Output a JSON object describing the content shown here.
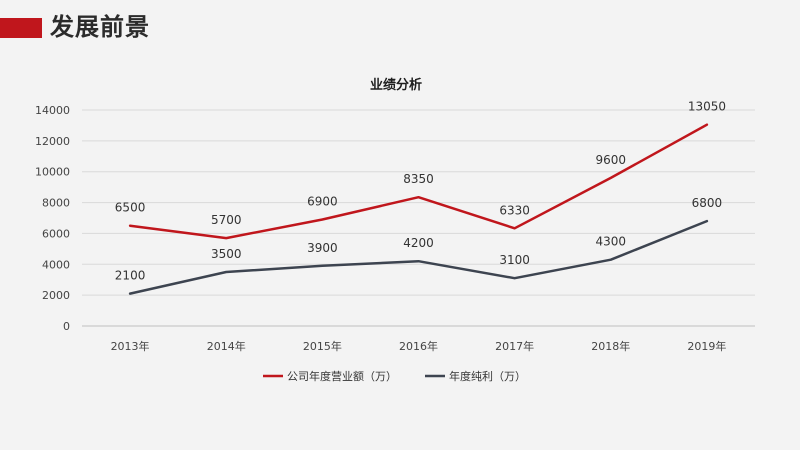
{
  "header": {
    "title": "发展前景",
    "accent_color": "#c0161c"
  },
  "chart_data": {
    "type": "line",
    "title": "业绩分析",
    "xlabel": "",
    "ylabel": "",
    "categories": [
      "2013年",
      "2014年",
      "2015年",
      "2016年",
      "2017年",
      "2018年",
      "2019年"
    ],
    "y_ticks": [
      "0",
      "2000",
      "4000",
      "6000",
      "8000",
      "10000",
      "12000",
      "14000"
    ],
    "ylim": [
      0,
      14000
    ],
    "grid": true,
    "legend_position": "bottom",
    "series": [
      {
        "name": "公司年度营业额（万）",
        "color": "#c0161c",
        "values": [
          6500,
          5700,
          6900,
          8350,
          6330,
          9600,
          13050
        ],
        "labels": [
          "6500",
          "5700",
          "6900",
          "8350",
          "6330",
          "9600",
          "13050"
        ]
      },
      {
        "name": "年度纯利（万）",
        "color": "#3d4450",
        "values": [
          2100,
          3500,
          3900,
          4200,
          3100,
          4300,
          6800
        ],
        "labels": [
          "2100",
          "3500",
          "3900",
          "4200",
          "3100",
          "4300",
          "6800"
        ]
      }
    ]
  }
}
